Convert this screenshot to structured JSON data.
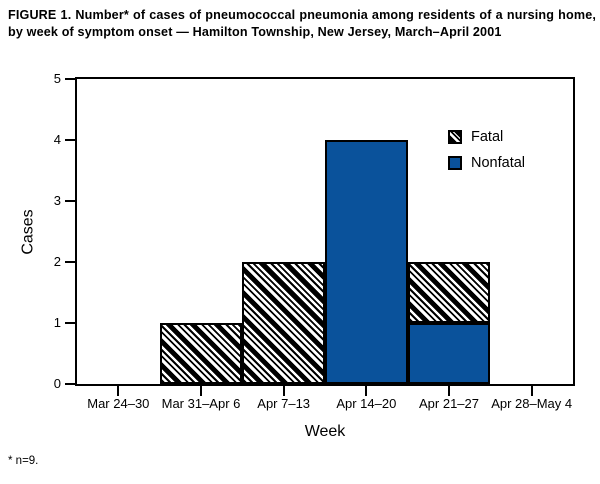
{
  "figure": {
    "title": "FIGURE 1. Number* of cases of pneumococcal pneumonia among residents of a nursing home, by week of symptom onset — Hamilton Township, New Jersey, March–April 2001",
    "footnote": "* n=9."
  },
  "chart_data": {
    "type": "bar",
    "stacked": true,
    "title": "FIGURE 1. Number* of cases of pneumococcal pneumonia among residents of a nursing home, by week of symptom onset — Hamilton Township, New Jersey, March–April 2001",
    "xlabel": "Week",
    "ylabel": "Cases",
    "categories": [
      "Mar 24–30",
      "Mar 31–Apr 6",
      "Apr 7–13",
      "Apr 14–20",
      "Apr 21–27",
      "Apr 28–May 4"
    ],
    "series": [
      {
        "name": "Fatal",
        "style": "hatch",
        "pattern": "black-diagonal-hatch",
        "values": [
          0,
          1,
          2,
          0,
          1,
          0
        ]
      },
      {
        "name": "Nonfatal",
        "style": "solid",
        "color": "#0a529b",
        "values": [
          0,
          0,
          0,
          4,
          1,
          0
        ]
      }
    ],
    "stack_order_bottom_to_top": [
      "Nonfatal",
      "Fatal"
    ],
    "totals_per_week": [
      0,
      1,
      2,
      4,
      2,
      0
    ],
    "ylim": [
      0,
      5
    ],
    "yticks": [
      0,
      1,
      2,
      3,
      4,
      5
    ],
    "grid": false,
    "bar_width": "full-category-band",
    "legend": {
      "position": "top-right-inside",
      "entries": [
        {
          "label": "Fatal",
          "style": "hatch"
        },
        {
          "label": "Nonfatal",
          "style": "solid"
        }
      ]
    },
    "colors": {
      "nonfatal_blue": "#0a529b",
      "axis_and_hatch": "#000000",
      "background": "#ffffff"
    }
  }
}
